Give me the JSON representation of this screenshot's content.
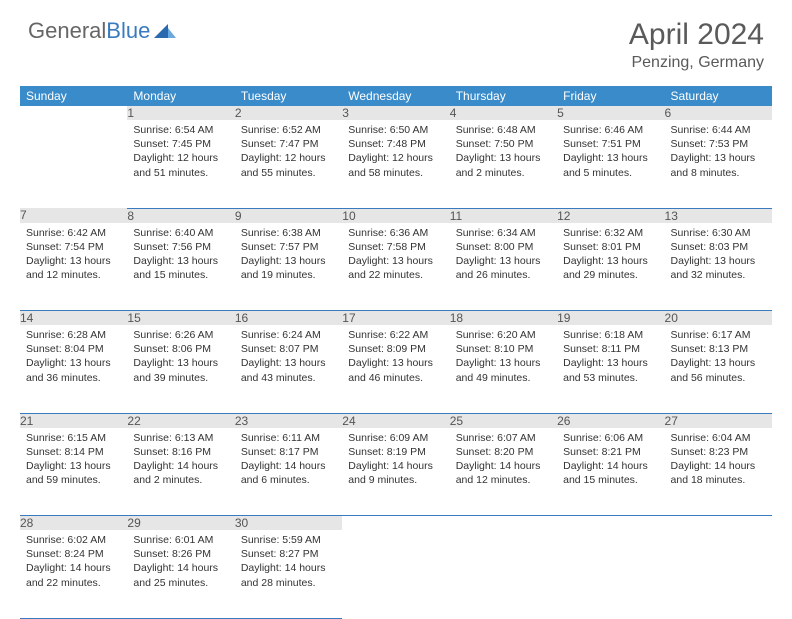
{
  "logo": {
    "part1": "General",
    "part2": "Blue"
  },
  "title": "April 2024",
  "location": "Penzing, Germany",
  "colors": {
    "header_bg": "#3a8bc9",
    "header_text": "#ffffff",
    "daynum_bg": "#e6e6e6",
    "border": "#3a7bbf",
    "text": "#333333",
    "logo_gray": "#666666",
    "logo_blue": "#3a7bbf"
  },
  "weekdays": [
    "Sunday",
    "Monday",
    "Tuesday",
    "Wednesday",
    "Thursday",
    "Friday",
    "Saturday"
  ],
  "weeks": [
    {
      "nums": [
        "",
        "1",
        "2",
        "3",
        "4",
        "5",
        "6"
      ],
      "cells": [
        null,
        {
          "sr": "Sunrise: 6:54 AM",
          "ss": "Sunset: 7:45 PM",
          "dl": "Daylight: 12 hours and 51 minutes."
        },
        {
          "sr": "Sunrise: 6:52 AM",
          "ss": "Sunset: 7:47 PM",
          "dl": "Daylight: 12 hours and 55 minutes."
        },
        {
          "sr": "Sunrise: 6:50 AM",
          "ss": "Sunset: 7:48 PM",
          "dl": "Daylight: 12 hours and 58 minutes."
        },
        {
          "sr": "Sunrise: 6:48 AM",
          "ss": "Sunset: 7:50 PM",
          "dl": "Daylight: 13 hours and 2 minutes."
        },
        {
          "sr": "Sunrise: 6:46 AM",
          "ss": "Sunset: 7:51 PM",
          "dl": "Daylight: 13 hours and 5 minutes."
        },
        {
          "sr": "Sunrise: 6:44 AM",
          "ss": "Sunset: 7:53 PM",
          "dl": "Daylight: 13 hours and 8 minutes."
        }
      ]
    },
    {
      "nums": [
        "7",
        "8",
        "9",
        "10",
        "11",
        "12",
        "13"
      ],
      "cells": [
        {
          "sr": "Sunrise: 6:42 AM",
          "ss": "Sunset: 7:54 PM",
          "dl": "Daylight: 13 hours and 12 minutes."
        },
        {
          "sr": "Sunrise: 6:40 AM",
          "ss": "Sunset: 7:56 PM",
          "dl": "Daylight: 13 hours and 15 minutes."
        },
        {
          "sr": "Sunrise: 6:38 AM",
          "ss": "Sunset: 7:57 PM",
          "dl": "Daylight: 13 hours and 19 minutes."
        },
        {
          "sr": "Sunrise: 6:36 AM",
          "ss": "Sunset: 7:58 PM",
          "dl": "Daylight: 13 hours and 22 minutes."
        },
        {
          "sr": "Sunrise: 6:34 AM",
          "ss": "Sunset: 8:00 PM",
          "dl": "Daylight: 13 hours and 26 minutes."
        },
        {
          "sr": "Sunrise: 6:32 AM",
          "ss": "Sunset: 8:01 PM",
          "dl": "Daylight: 13 hours and 29 minutes."
        },
        {
          "sr": "Sunrise: 6:30 AM",
          "ss": "Sunset: 8:03 PM",
          "dl": "Daylight: 13 hours and 32 minutes."
        }
      ]
    },
    {
      "nums": [
        "14",
        "15",
        "16",
        "17",
        "18",
        "19",
        "20"
      ],
      "cells": [
        {
          "sr": "Sunrise: 6:28 AM",
          "ss": "Sunset: 8:04 PM",
          "dl": "Daylight: 13 hours and 36 minutes."
        },
        {
          "sr": "Sunrise: 6:26 AM",
          "ss": "Sunset: 8:06 PM",
          "dl": "Daylight: 13 hours and 39 minutes."
        },
        {
          "sr": "Sunrise: 6:24 AM",
          "ss": "Sunset: 8:07 PM",
          "dl": "Daylight: 13 hours and 43 minutes."
        },
        {
          "sr": "Sunrise: 6:22 AM",
          "ss": "Sunset: 8:09 PM",
          "dl": "Daylight: 13 hours and 46 minutes."
        },
        {
          "sr": "Sunrise: 6:20 AM",
          "ss": "Sunset: 8:10 PM",
          "dl": "Daylight: 13 hours and 49 minutes."
        },
        {
          "sr": "Sunrise: 6:18 AM",
          "ss": "Sunset: 8:11 PM",
          "dl": "Daylight: 13 hours and 53 minutes."
        },
        {
          "sr": "Sunrise: 6:17 AM",
          "ss": "Sunset: 8:13 PM",
          "dl": "Daylight: 13 hours and 56 minutes."
        }
      ]
    },
    {
      "nums": [
        "21",
        "22",
        "23",
        "24",
        "25",
        "26",
        "27"
      ],
      "cells": [
        {
          "sr": "Sunrise: 6:15 AM",
          "ss": "Sunset: 8:14 PM",
          "dl": "Daylight: 13 hours and 59 minutes."
        },
        {
          "sr": "Sunrise: 6:13 AM",
          "ss": "Sunset: 8:16 PM",
          "dl": "Daylight: 14 hours and 2 minutes."
        },
        {
          "sr": "Sunrise: 6:11 AM",
          "ss": "Sunset: 8:17 PM",
          "dl": "Daylight: 14 hours and 6 minutes."
        },
        {
          "sr": "Sunrise: 6:09 AM",
          "ss": "Sunset: 8:19 PM",
          "dl": "Daylight: 14 hours and 9 minutes."
        },
        {
          "sr": "Sunrise: 6:07 AM",
          "ss": "Sunset: 8:20 PM",
          "dl": "Daylight: 14 hours and 12 minutes."
        },
        {
          "sr": "Sunrise: 6:06 AM",
          "ss": "Sunset: 8:21 PM",
          "dl": "Daylight: 14 hours and 15 minutes."
        },
        {
          "sr": "Sunrise: 6:04 AM",
          "ss": "Sunset: 8:23 PM",
          "dl": "Daylight: 14 hours and 18 minutes."
        }
      ]
    },
    {
      "nums": [
        "28",
        "29",
        "30",
        "",
        "",
        "",
        ""
      ],
      "cells": [
        {
          "sr": "Sunrise: 6:02 AM",
          "ss": "Sunset: 8:24 PM",
          "dl": "Daylight: 14 hours and 22 minutes."
        },
        {
          "sr": "Sunrise: 6:01 AM",
          "ss": "Sunset: 8:26 PM",
          "dl": "Daylight: 14 hours and 25 minutes."
        },
        {
          "sr": "Sunrise: 5:59 AM",
          "ss": "Sunset: 8:27 PM",
          "dl": "Daylight: 14 hours and 28 minutes."
        },
        null,
        null,
        null,
        null
      ]
    }
  ]
}
